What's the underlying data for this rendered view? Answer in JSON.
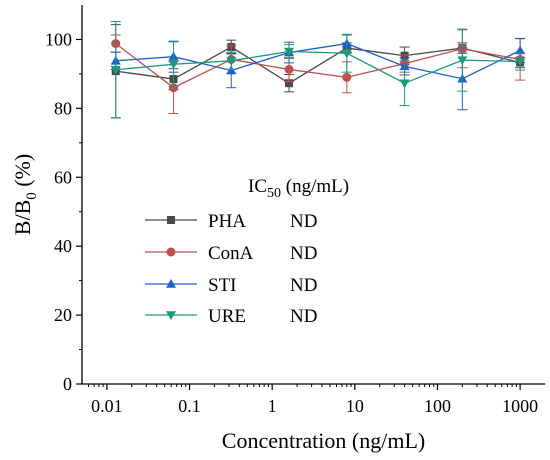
{
  "chart_data": {
    "type": "line",
    "title": "",
    "xlabel": "Concentration (ng/mL)",
    "ylabel": "B/B0 (%)",
    "ylabel_parts": {
      "main": "B/B",
      "sub": "0",
      "tail": " (%)"
    },
    "x_scale": "log",
    "xlim": [
      0.005,
      2000
    ],
    "ylim": [
      0,
      110
    ],
    "x_ticks": [
      0.01,
      0.1,
      1,
      10,
      100,
      1000
    ],
    "x_tick_labels": [
      "0.01",
      "0.1",
      "1",
      "10",
      "100",
      "1000"
    ],
    "y_ticks": [
      0,
      20,
      40,
      60,
      80,
      100
    ],
    "y_tick_labels": [
      "0",
      "20",
      "40",
      "60",
      "80",
      "100"
    ],
    "grid": false,
    "x": [
      0.0128,
      0.064,
      0.32,
      1.6,
      8,
      40,
      200,
      1000
    ],
    "series": [
      {
        "name": "PHA",
        "marker": "square",
        "color": "#4a4a4a",
        "values": [
          90.8,
          88.5,
          97.8,
          87.3,
          97.5,
          95.3,
          97.5,
          93.3
        ],
        "errors": [
          13.5,
          3.0,
          2.0,
          2.5,
          1.5,
          2.5,
          1.5,
          1.5
        ]
      },
      {
        "name": "ConA",
        "marker": "circle",
        "color": "#c0504d",
        "values": [
          98.8,
          86.0,
          94.2,
          91.3,
          89.0,
          93.0,
          97.3,
          94.2
        ],
        "errors": [
          2.5,
          7.5,
          4.0,
          3.5,
          4.5,
          2.5,
          5.5,
          6.0
        ]
      },
      {
        "name": "STI",
        "marker": "triangle-up",
        "color": "#1f5fd1",
        "values": [
          93.8,
          95.0,
          91.0,
          96.2,
          98.8,
          92.2,
          88.6,
          96.8
        ],
        "errors": [
          2.5,
          4.5,
          5.0,
          3.0,
          2.5,
          2.5,
          9.0,
          3.5
        ]
      },
      {
        "name": "URE",
        "marker": "triangle-down",
        "color": "#1a9b7b",
        "values": [
          91.2,
          92.8,
          93.8,
          96.5,
          96.0,
          87.3,
          94.0,
          93.6
        ],
        "errors": [
          14.0,
          6.5,
          2.5,
          2.0,
          5.5,
          6.5,
          9.0,
          2.5
        ]
      }
    ],
    "legend": {
      "placement": "center",
      "title_parts": {
        "main": "IC",
        "sub": "50",
        "tail": " (ng/mL)"
      },
      "ic50_values": [
        "ND",
        "ND",
        "ND",
        "ND"
      ]
    }
  }
}
